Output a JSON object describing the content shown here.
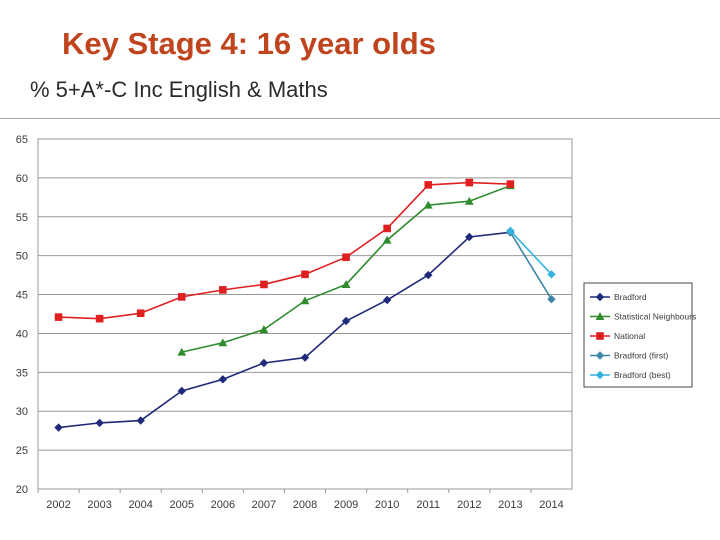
{
  "slide": {
    "title": "Key Stage 4: 16 year olds",
    "subtitle": "% 5+A*-C Inc English & Maths"
  },
  "chart_data": {
    "type": "line",
    "title": "",
    "xlabel": "",
    "ylabel": "",
    "categories": [
      "2002",
      "2003",
      "2004",
      "2005",
      "2006",
      "2007",
      "2008",
      "2009",
      "2010",
      "2011",
      "2012",
      "2013",
      "2014"
    ],
    "ylim": [
      20,
      65
    ],
    "yticks": [
      20,
      25,
      30,
      35,
      40,
      45,
      50,
      55,
      60,
      65
    ],
    "grid": true,
    "legend_position": "right",
    "series": [
      {
        "name": "Bradford",
        "color": "#1f2a7a",
        "marker": "diamond",
        "values": [
          27.9,
          28.5,
          28.8,
          32.6,
          34.1,
          36.2,
          36.9,
          41.6,
          44.3,
          47.5,
          52.4,
          53.0,
          null
        ]
      },
      {
        "name": "Statistical Neighbours",
        "color": "#2e8b2e",
        "marker": "triangle",
        "values": [
          null,
          null,
          null,
          37.6,
          38.8,
          40.5,
          44.2,
          46.3,
          52.0,
          56.5,
          57.0,
          59.0,
          null
        ]
      },
      {
        "name": "National",
        "color": "#e02020",
        "marker": "square",
        "values": [
          42.1,
          41.9,
          42.6,
          44.7,
          45.6,
          46.3,
          47.6,
          49.8,
          53.5,
          59.1,
          59.4,
          59.2,
          null
        ]
      },
      {
        "name": "Bradford (first)",
        "color": "#3e86a8",
        "marker": "diamond",
        "values": [
          null,
          null,
          null,
          null,
          null,
          null,
          null,
          null,
          null,
          null,
          null,
          53.0,
          44.4
        ]
      },
      {
        "name": "Bradford (best)",
        "color": "#35b3e0",
        "marker": "diamond",
        "values": [
          null,
          null,
          null,
          null,
          null,
          null,
          null,
          null,
          null,
          null,
          null,
          53.2,
          47.6
        ]
      }
    ]
  }
}
